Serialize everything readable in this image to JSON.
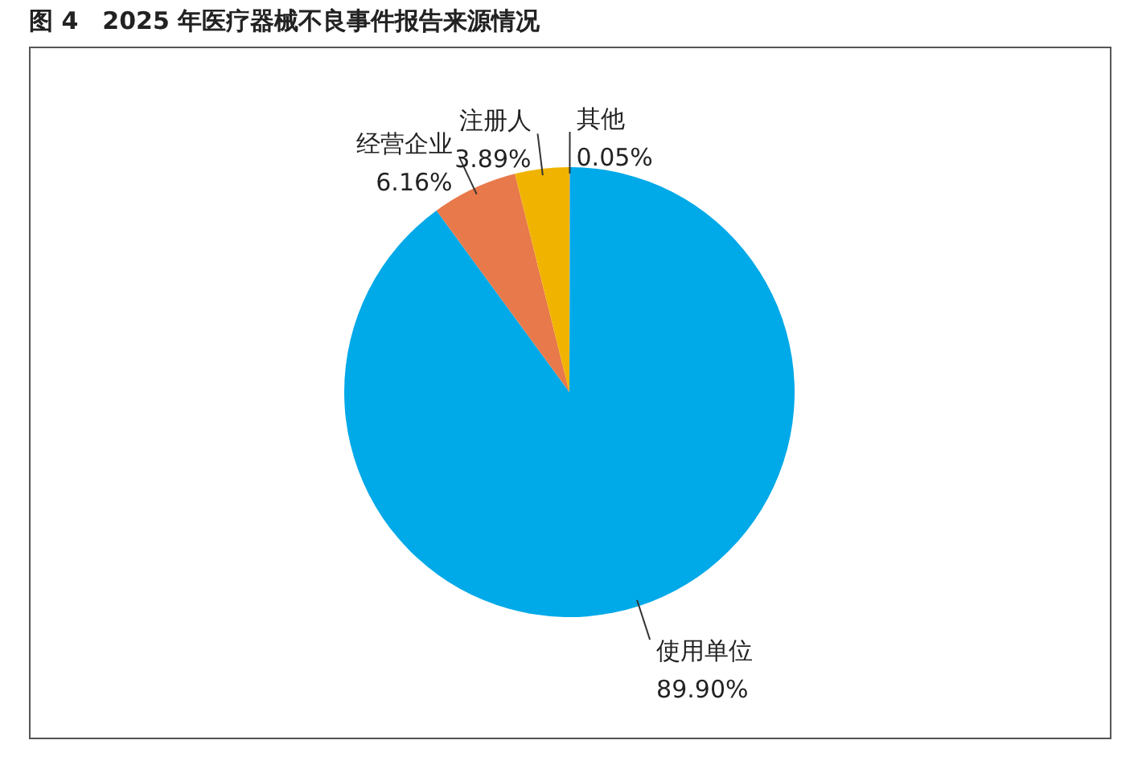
{
  "chart_data": {
    "type": "pie",
    "title": "图 4　2025 年医疗器械不良事件报告来源情况",
    "categories": [
      "其他",
      "使用单位",
      "经营企业",
      "注册人"
    ],
    "values": [
      0.05,
      89.9,
      6.16,
      3.89
    ],
    "colors": [
      "#9e9e9e",
      "#00a9e8",
      "#e8794a",
      "#f0b400"
    ],
    "value_labels": [
      "0.05%",
      "89.90%",
      "6.16%",
      "3.89%"
    ],
    "legend": false
  }
}
